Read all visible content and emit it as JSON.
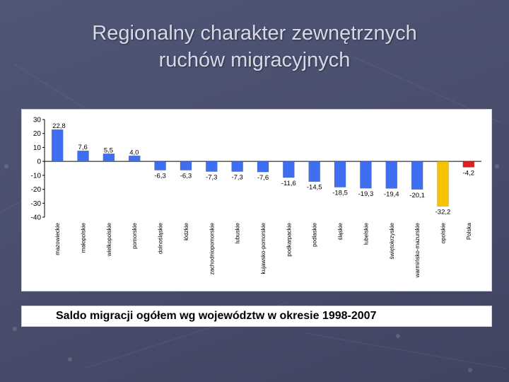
{
  "title": {
    "line1": "Regionalny charakter zewnętrznych",
    "line2": "ruchów migracyjnych"
  },
  "caption": "Saldo migracji ogółem wg województw w okresie 1998-2007",
  "colors": {
    "default_bar": "#3f6ff0",
    "highlight_bar": "#f5c400",
    "country_bar": "#e02020"
  },
  "chart_data": {
    "type": "bar",
    "categories": [
      "mazowieckie",
      "małopolskie",
      "wielkopolskie",
      "pomorskie",
      "dolnośląskie",
      "łódzkie",
      "zachodniopomorskie",
      "lubuskie",
      "kujawsko-pomorskie",
      "podkarpackie",
      "podlaskie",
      "śląskie",
      "lubelskie",
      "świętokrzyskie",
      "warmińsko-mazurskie",
      "opolskie",
      "Polska"
    ],
    "values": [
      22.8,
      7.6,
      5.5,
      4.0,
      -6.3,
      -6.3,
      -7.3,
      -7.3,
      -7.6,
      -11.6,
      -14.5,
      -18.5,
      -19.3,
      -19.4,
      -20.1,
      -32.2,
      -4.2
    ],
    "value_labels": [
      "22,8",
      "7,6",
      "5,5",
      "4,0",
      "-6,3",
      "-6,3",
      "-7,3",
      "-7,3",
      "-7,6",
      "-11,6",
      "-14,5",
      "-18,5",
      "-19,3",
      "-19,4",
      "-20,1",
      "-32,2",
      "-4,2"
    ],
    "bar_colors": [
      "default",
      "default",
      "default",
      "default",
      "default",
      "default",
      "default",
      "default",
      "default",
      "default",
      "default",
      "default",
      "default",
      "default",
      "default",
      "highlight",
      "country"
    ],
    "ylim": [
      -40,
      30
    ],
    "yticks": [
      30,
      20,
      10,
      0,
      -10,
      -20,
      -30,
      -40
    ],
    "grid": false,
    "legend": "none"
  }
}
